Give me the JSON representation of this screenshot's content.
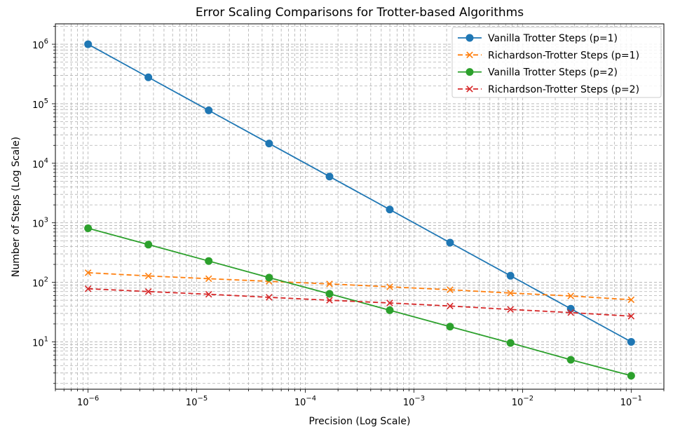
{
  "chart_data": {
    "type": "line",
    "title": "Error Scaling Comparisons for Trotter-based Algorithms",
    "xlabel": "Precision (Log Scale)",
    "ylabel": "Number of Steps (Log Scale)",
    "xscale": "log",
    "yscale": "log",
    "xlim": [
      5e-07,
      0.2
    ],
    "ylim": [
      1.6,
      2200000.0
    ],
    "grid": "major and minor, dashed",
    "legend": "top-right",
    "x": [
      1e-06,
      3.59e-06,
      1.29e-05,
      4.64e-05,
      0.000167,
      0.000599,
      0.00215,
      0.00774,
      0.0278,
      0.1
    ],
    "xticks": [
      {
        "value": 1e-06,
        "base": "10",
        "exp": "−6"
      },
      {
        "value": 1e-05,
        "base": "10",
        "exp": "−5"
      },
      {
        "value": 0.0001,
        "base": "10",
        "exp": "−4"
      },
      {
        "value": 0.001,
        "base": "10",
        "exp": "−3"
      },
      {
        "value": 0.01,
        "base": "10",
        "exp": "−2"
      },
      {
        "value": 0.1,
        "base": "10",
        "exp": "−1"
      }
    ],
    "yticks": [
      {
        "value": 10,
        "base": "10",
        "exp": "1"
      },
      {
        "value": 100,
        "base": "10",
        "exp": "2"
      },
      {
        "value": 1000,
        "base": "10",
        "exp": "3"
      },
      {
        "value": 10000,
        "base": "10",
        "exp": "4"
      },
      {
        "value": 100000,
        "base": "10",
        "exp": "5"
      },
      {
        "value": 1000000,
        "base": "10",
        "exp": "6"
      }
    ],
    "series": [
      {
        "name": "Vanilla Trotter Steps (p=1)",
        "color": "#1f77b4",
        "marker": "circle",
        "linestyle": "solid",
        "values": [
          1000000,
          278000,
          77400,
          21500,
          5990,
          1670,
          464,
          129,
          36,
          10
        ]
      },
      {
        "name": "Richardson-Trotter Steps (p=1)",
        "color": "#ff7f0e",
        "marker": "x",
        "linestyle": "dashed",
        "values": [
          145,
          128,
          115,
          104,
          94,
          84,
          75,
          66,
          59,
          51
        ]
      },
      {
        "name": "Vanilla Trotter Steps (p=2)",
        "color": "#2ca02c",
        "marker": "circle",
        "linestyle": "solid",
        "values": [
          810,
          430,
          228,
          120,
          64,
          34,
          18,
          9.6,
          5,
          2.7
        ]
      },
      {
        "name": "Richardson-Trotter Steps (p=2)",
        "color": "#d62728",
        "marker": "x",
        "linestyle": "dashed",
        "values": [
          78,
          70,
          63,
          56,
          50,
          45,
          40,
          35,
          31,
          27
        ]
      }
    ]
  }
}
